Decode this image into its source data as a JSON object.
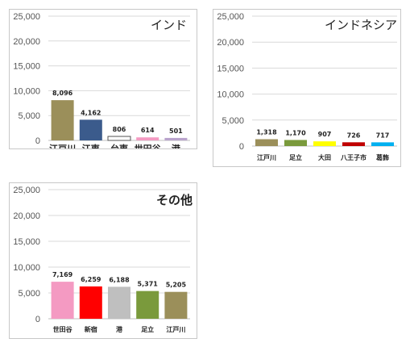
{
  "chart_data": [
    {
      "type": "bar",
      "title": "インド",
      "ylim": [
        0,
        25000
      ],
      "yticks": [
        "0",
        "5,000",
        "10,000",
        "15,000",
        "20,000",
        "25,000"
      ],
      "grid": true,
      "categories": [
        "江戸川",
        "江東",
        "台東",
        "世田谷",
        "港"
      ],
      "values": [
        8096,
        4162,
        806,
        614,
        501
      ],
      "value_labels": [
        "8,096",
        "4,162",
        "806",
        "614",
        "501"
      ],
      "colors": [
        "#9b8f5a",
        "#3b5b8c",
        "#ffffff",
        "#f49ac2",
        "#b9a3cc"
      ]
    },
    {
      "type": "bar",
      "title": "インドネシア",
      "ylim": [
        0,
        25000
      ],
      "yticks": [
        "0",
        "5,000",
        "10,000",
        "15,000",
        "20,000",
        "25,000"
      ],
      "grid": true,
      "categories": [
        "江戸川",
        "足立",
        "大田",
        "八王子市",
        "葛飾"
      ],
      "values": [
        1318,
        1170,
        907,
        726,
        717
      ],
      "value_labels": [
        "1,318",
        "1,170",
        "907",
        "726",
        "717"
      ],
      "colors": [
        "#9b8f5a",
        "#7a9a3c",
        "#ffff00",
        "#c00000",
        "#00b0f0"
      ]
    },
    {
      "type": "bar",
      "title": "その他",
      "ylim": [
        0,
        25000
      ],
      "yticks": [
        "0",
        "5,000",
        "10,000",
        "15,000",
        "20,000",
        "25,000"
      ],
      "grid": true,
      "categories": [
        "世田谷",
        "新宿",
        "港",
        "足立",
        "江戸川"
      ],
      "values": [
        7169,
        6259,
        6188,
        5371,
        5205
      ],
      "value_labels": [
        "7,169",
        "6,259",
        "6,188",
        "5,371",
        "5,205"
      ],
      "colors": [
        "#f49ac2",
        "#ff0000",
        "#bfbfbf",
        "#7a9a3c",
        "#9b8f5a"
      ]
    }
  ]
}
